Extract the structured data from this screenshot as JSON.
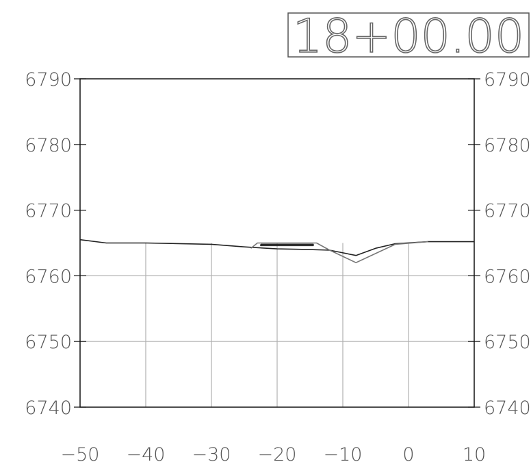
{
  "station_label": "18+00.00",
  "chart_data": {
    "type": "line",
    "title": "18+00.00",
    "xlabel": "",
    "ylabel": "",
    "xlim": [
      -50,
      10
    ],
    "ylim": [
      6740,
      6790
    ],
    "x_ticks": [
      -50,
      -40,
      -30,
      -20,
      -10,
      0,
      10
    ],
    "x_tick_labels": [
      "−50",
      "−40",
      "−30",
      "−20",
      "−10",
      "0",
      "10"
    ],
    "y_ticks": [
      6740,
      6750,
      6760,
      6770,
      6780,
      6790
    ],
    "y_tick_labels": [
      "6740",
      "6750",
      "6760",
      "6770",
      "6780",
      "6790"
    ],
    "grid": {
      "horizontal": [
        6750,
        6760
      ],
      "vertical": [
        -40,
        -30,
        -20,
        -10,
        0
      ],
      "vertical_top": 6765
    },
    "grid_color": "#b0b0b0",
    "series": [
      {
        "color": "#222222",
        "points": [
          [
            -50,
            6765.5
          ],
          [
            -46,
            6765.0
          ],
          [
            -40,
            6765.0
          ],
          [
            -30,
            6764.8
          ],
          [
            -25,
            6764.4
          ],
          [
            -20,
            6764.1
          ],
          [
            -15,
            6764.0
          ],
          [
            -12,
            6763.9
          ],
          [
            -8,
            6763.1
          ],
          [
            -5,
            6764.2
          ],
          [
            -2,
            6764.9
          ],
          [
            3,
            6765.2
          ],
          [
            10,
            6765.2
          ]
        ]
      },
      {
        "color": "#777777",
        "points": [
          [
            -24,
            6764.2
          ],
          [
            -23,
            6765.0
          ],
          [
            -14,
            6765.0
          ],
          [
            -12,
            6763.9
          ],
          [
            -8,
            6762.0
          ],
          [
            -2,
            6764.8
          ],
          [
            3,
            6765.2
          ]
        ]
      },
      {
        "color": "#222222",
        "points": [
          [
            -22.5,
            6764.8
          ],
          [
            -14.5,
            6764.8
          ],
          [
            -14.5,
            6764.6
          ],
          [
            -22.5,
            6764.6
          ],
          [
            -22.5,
            6764.8
          ]
        ]
      }
    ]
  }
}
